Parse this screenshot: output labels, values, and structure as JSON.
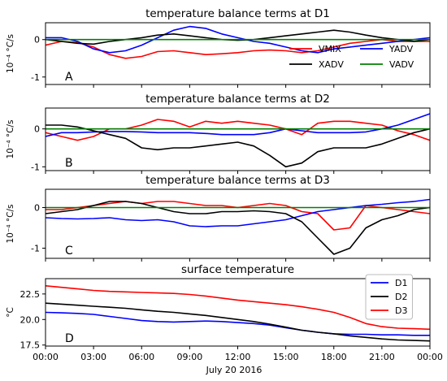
{
  "figure": {
    "xlabel": "July 20 2016"
  },
  "chart_data": [
    {
      "type": "line",
      "title": "temperature balance terms at D1",
      "panel_label": "A",
      "ylabel": "10⁻⁴ °C/s",
      "ylim": [
        -1.2,
        0.45
      ],
      "yticks": [
        -1,
        0
      ],
      "xlim": [
        0,
        24
      ],
      "legend": "lower-right",
      "series": [
        {
          "name": "VMIX",
          "color": "#ff0000",
          "x": [
            0,
            1,
            2,
            3,
            4,
            5,
            6,
            7,
            8,
            9,
            10,
            11,
            12,
            13,
            14,
            15,
            16,
            17,
            18,
            19,
            20,
            21,
            22,
            23,
            24
          ],
          "values": [
            -0.15,
            -0.05,
            -0.08,
            -0.2,
            -0.4,
            -0.5,
            -0.45,
            -0.32,
            -0.3,
            -0.35,
            -0.4,
            -0.38,
            -0.35,
            -0.3,
            -0.28,
            -0.3,
            -0.35,
            -0.3,
            -0.2,
            -0.1,
            -0.05,
            0.0,
            -0.05,
            -0.05,
            -0.05
          ]
        },
        {
          "name": "YADV",
          "color": "#0000ff",
          "x": [
            0,
            1,
            2,
            3,
            4,
            5,
            6,
            7,
            8,
            9,
            10,
            11,
            12,
            13,
            14,
            15,
            16,
            17,
            18,
            19,
            20,
            21,
            22,
            23,
            24
          ],
          "values": [
            0.05,
            0.05,
            -0.05,
            -0.25,
            -0.35,
            -0.3,
            -0.15,
            0.05,
            0.25,
            0.35,
            0.3,
            0.15,
            0.05,
            -0.05,
            -0.1,
            -0.2,
            -0.3,
            -0.35,
            -0.25,
            -0.2,
            -0.15,
            -0.1,
            -0.05,
            0.0,
            0.05
          ]
        },
        {
          "name": "XADV",
          "color": "#000000",
          "x": [
            0,
            1,
            2,
            3,
            4,
            5,
            6,
            7,
            8,
            9,
            10,
            11,
            12,
            13,
            14,
            15,
            16,
            17,
            18,
            19,
            20,
            21,
            22,
            23,
            24
          ],
          "values": [
            0.0,
            -0.05,
            -0.1,
            -0.12,
            -0.05,
            0.0,
            0.05,
            0.12,
            0.15,
            0.1,
            0.05,
            0.0,
            -0.02,
            0.0,
            0.05,
            0.1,
            0.15,
            0.2,
            0.25,
            0.2,
            0.12,
            0.05,
            0.0,
            -0.05,
            0.0
          ]
        },
        {
          "name": "VADV",
          "color": "#008000",
          "x": [
            0,
            24
          ],
          "values": [
            0,
            0
          ]
        }
      ]
    },
    {
      "type": "line",
      "title": "temperature balance terms at D2",
      "panel_label": "B",
      "ylabel": "10⁻⁴ °C/s",
      "ylim": [
        -1.1,
        0.55
      ],
      "yticks": [
        -1,
        0
      ],
      "xlim": [
        0,
        24
      ],
      "series": [
        {
          "name": "VMIX",
          "color": "#ff0000",
          "x": [
            0,
            1,
            2,
            3,
            4,
            5,
            6,
            7,
            8,
            9,
            10,
            11,
            12,
            13,
            14,
            15,
            16,
            17,
            18,
            19,
            20,
            21,
            22,
            23,
            24
          ],
          "values": [
            -0.1,
            -0.2,
            -0.3,
            -0.2,
            0.0,
            0.0,
            0.1,
            0.25,
            0.2,
            0.05,
            0.2,
            0.15,
            0.2,
            0.15,
            0.1,
            0.0,
            -0.15,
            0.15,
            0.2,
            0.2,
            0.15,
            0.1,
            -0.05,
            -0.15,
            -0.3
          ]
        },
        {
          "name": "YADV",
          "color": "#0000ff",
          "x": [
            0,
            1,
            2,
            3,
            4,
            5,
            6,
            7,
            8,
            9,
            10,
            11,
            12,
            13,
            14,
            15,
            16,
            17,
            18,
            19,
            20,
            21,
            22,
            23,
            24
          ],
          "values": [
            -0.2,
            -0.1,
            -0.1,
            -0.08,
            -0.07,
            -0.07,
            -0.08,
            -0.1,
            -0.1,
            -0.1,
            -0.12,
            -0.15,
            -0.15,
            -0.15,
            -0.1,
            0.0,
            -0.05,
            -0.1,
            -0.1,
            -0.1,
            -0.08,
            0.0,
            0.1,
            0.25,
            0.4
          ]
        },
        {
          "name": "XADV",
          "color": "#000000",
          "x": [
            0,
            1,
            2,
            3,
            4,
            5,
            6,
            7,
            8,
            9,
            10,
            11,
            12,
            13,
            14,
            15,
            16,
            17,
            18,
            19,
            20,
            21,
            22,
            23,
            24
          ],
          "values": [
            0.1,
            0.1,
            0.05,
            -0.05,
            -0.15,
            -0.25,
            -0.5,
            -0.55,
            -0.5,
            -0.5,
            -0.45,
            -0.4,
            -0.35,
            -0.45,
            -0.7,
            -1.0,
            -0.9,
            -0.6,
            -0.5,
            -0.5,
            -0.5,
            -0.4,
            -0.25,
            -0.1,
            0.0
          ]
        },
        {
          "name": "VADV",
          "color": "#008000",
          "x": [
            0,
            24
          ],
          "values": [
            0,
            0
          ]
        }
      ]
    },
    {
      "type": "line",
      "title": "temperature balance terms at D3",
      "panel_label": "C",
      "ylabel": "10⁻⁴ °C/s",
      "ylim": [
        -1.25,
        0.45
      ],
      "yticks": [
        -1,
        0
      ],
      "xlim": [
        0,
        24
      ],
      "series": [
        {
          "name": "VMIX",
          "color": "#ff0000",
          "x": [
            0,
            1,
            2,
            3,
            4,
            5,
            6,
            7,
            8,
            9,
            10,
            11,
            12,
            13,
            14,
            15,
            16,
            17,
            18,
            19,
            20,
            21,
            22,
            23,
            24
          ],
          "values": [
            -0.05,
            -0.05,
            0.0,
            0.05,
            0.1,
            0.15,
            0.1,
            0.15,
            0.15,
            0.1,
            0.05,
            0.05,
            0.0,
            0.05,
            0.1,
            0.05,
            -0.1,
            -0.15,
            -0.55,
            -0.5,
            0.05,
            0.0,
            -0.05,
            -0.1,
            -0.15
          ]
        },
        {
          "name": "YADV",
          "color": "#0000ff",
          "x": [
            0,
            1,
            2,
            3,
            4,
            5,
            6,
            7,
            8,
            9,
            10,
            11,
            12,
            13,
            14,
            15,
            16,
            17,
            18,
            19,
            20,
            21,
            22,
            23,
            24
          ],
          "values": [
            -0.25,
            -0.27,
            -0.28,
            -0.27,
            -0.25,
            -0.3,
            -0.32,
            -0.3,
            -0.35,
            -0.45,
            -0.47,
            -0.45,
            -0.45,
            -0.4,
            -0.35,
            -0.3,
            -0.2,
            -0.1,
            -0.05,
            0.0,
            0.05,
            0.08,
            0.12,
            0.15,
            0.2
          ]
        },
        {
          "name": "XADV",
          "color": "#000000",
          "x": [
            0,
            1,
            2,
            3,
            4,
            5,
            6,
            7,
            8,
            9,
            10,
            11,
            12,
            13,
            14,
            15,
            16,
            17,
            18,
            19,
            20,
            21,
            22,
            23,
            24
          ],
          "values": [
            -0.15,
            -0.1,
            -0.05,
            0.05,
            0.15,
            0.15,
            0.1,
            0.0,
            -0.1,
            -0.15,
            -0.15,
            -0.1,
            -0.1,
            -0.08,
            -0.1,
            -0.15,
            -0.35,
            -0.75,
            -1.15,
            -1.0,
            -0.5,
            -0.3,
            -0.2,
            -0.05,
            0.0
          ]
        },
        {
          "name": "VADV",
          "color": "#008000",
          "x": [
            0,
            24
          ],
          "values": [
            0,
            0
          ]
        }
      ]
    },
    {
      "type": "line",
      "title": "surface temperature",
      "panel_label": "D",
      "ylabel": "°C",
      "ylim": [
        17.4,
        24.0
      ],
      "yticks": [
        17.5,
        20.0,
        22.5
      ],
      "ytick_labels": [
        "17.5",
        "20.0",
        "22.5"
      ],
      "xlim": [
        0,
        24
      ],
      "xticks": [
        0,
        3,
        6,
        9,
        12,
        15,
        18,
        21,
        24
      ],
      "xtick_labels": [
        "00:00",
        "03:00",
        "06:00",
        "09:00",
        "12:00",
        "15:00",
        "18:00",
        "21:00",
        "00:00"
      ],
      "legend": "upper-right",
      "series": [
        {
          "name": "D1",
          "color": "#0000ff",
          "x": [
            0,
            1,
            2,
            3,
            4,
            5,
            6,
            7,
            8,
            9,
            10,
            11,
            12,
            13,
            14,
            15,
            16,
            17,
            18,
            19,
            20,
            21,
            22,
            23,
            24
          ],
          "values": [
            20.7,
            20.65,
            20.6,
            20.5,
            20.3,
            20.1,
            19.9,
            19.8,
            19.75,
            19.8,
            19.85,
            19.8,
            19.7,
            19.6,
            19.45,
            19.2,
            18.95,
            18.75,
            18.6,
            18.55,
            18.55,
            18.5,
            18.5,
            18.45,
            18.45
          ]
        },
        {
          "name": "D2",
          "color": "#000000",
          "x": [
            0,
            1,
            2,
            3,
            4,
            5,
            6,
            7,
            8,
            9,
            10,
            11,
            12,
            13,
            14,
            15,
            16,
            17,
            18,
            19,
            20,
            21,
            22,
            23,
            24
          ],
          "values": [
            21.6,
            21.5,
            21.4,
            21.3,
            21.2,
            21.1,
            20.95,
            20.8,
            20.7,
            20.55,
            20.4,
            20.2,
            20.0,
            19.8,
            19.55,
            19.25,
            18.95,
            18.75,
            18.6,
            18.4,
            18.25,
            18.1,
            18.0,
            17.95,
            17.9
          ]
        },
        {
          "name": "D3",
          "color": "#ff0000",
          "x": [
            0,
            1,
            2,
            3,
            4,
            5,
            6,
            7,
            8,
            9,
            10,
            11,
            12,
            13,
            14,
            15,
            16,
            17,
            18,
            19,
            20,
            21,
            22,
            23,
            24
          ],
          "values": [
            23.3,
            23.15,
            23.0,
            22.85,
            22.75,
            22.7,
            22.65,
            22.6,
            22.55,
            22.45,
            22.3,
            22.1,
            21.9,
            21.75,
            21.6,
            21.45,
            21.25,
            21.0,
            20.7,
            20.2,
            19.6,
            19.3,
            19.15,
            19.1,
            19.05
          ]
        }
      ]
    }
  ]
}
